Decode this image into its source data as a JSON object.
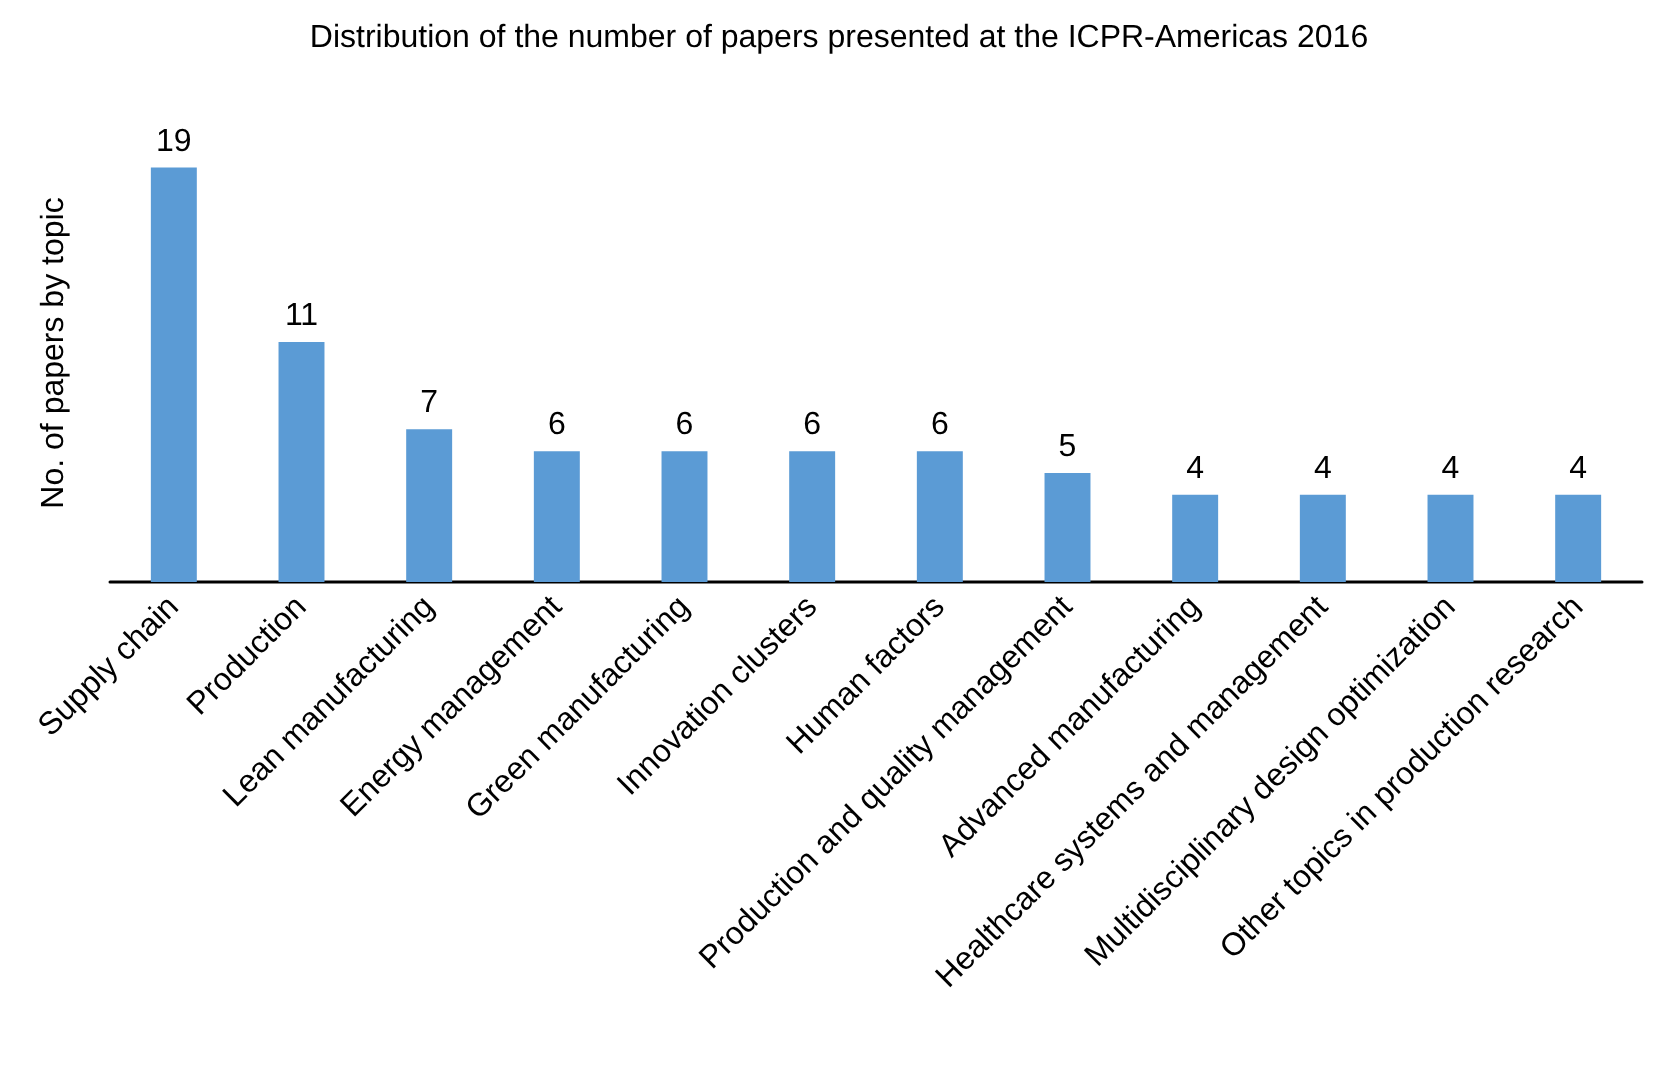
{
  "chart_data": {
    "type": "bar",
    "title": "Distribution of the number of papers presented at the ICPR-Americas 2016",
    "ylabel": "No. of papers by topic",
    "categories": [
      "Supply chain",
      "Production",
      "Lean manufacturing",
      "Energy management",
      "Green manufacturing",
      "Innovation clusters",
      "Human factors",
      "Production and quality management",
      "Advanced manufacturing",
      "Healthcare systems and management",
      "Multidisciplinary design optimization",
      "Other topics in production research"
    ],
    "values": [
      19,
      11,
      7,
      6,
      6,
      6,
      6,
      5,
      4,
      4,
      4,
      4
    ],
    "color": "#5b9bd5",
    "data_labels": true
  }
}
